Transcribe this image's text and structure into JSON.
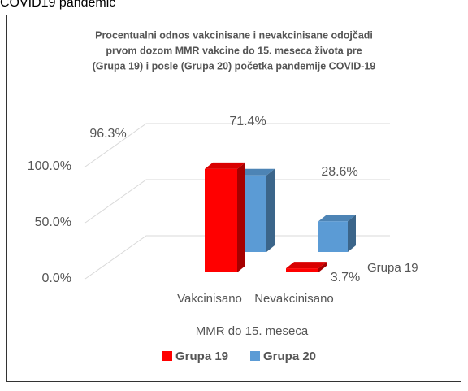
{
  "caption": "COVID19 pandemic",
  "chart_data": {
    "type": "bar3d",
    "title": [
      "Procentualni odnos vakcinisane i nevakcinisane odojčadi",
      "prvom dozom  MMR vakcine do 15. meseca života pre",
      "(Grupa 19) i posle (Grupa 20) početka pandemije COVID-19"
    ],
    "x_label": "MMR do 15. meseca",
    "categories": [
      "Vakcinisano",
      "Nevakcinisano"
    ],
    "series": [
      {
        "name": "Grupa 19",
        "color": "#ff0000",
        "values": [
          96.3,
          3.7
        ],
        "value_labels": [
          "96.3%",
          "3.7%"
        ]
      },
      {
        "name": "Grupa 20",
        "color": "#5b9bd5",
        "values": [
          71.4,
          28.6
        ],
        "value_labels": [
          "71.4%",
          "28.6%"
        ]
      }
    ],
    "ylim": [
      0,
      100
    ],
    "yticks": [
      {
        "value": 0,
        "label": "0.0%"
      },
      {
        "value": 50,
        "label": "50.0%"
      },
      {
        "value": 100,
        "label": "100.0%"
      }
    ],
    "grid": true,
    "legend": "bottom"
  }
}
